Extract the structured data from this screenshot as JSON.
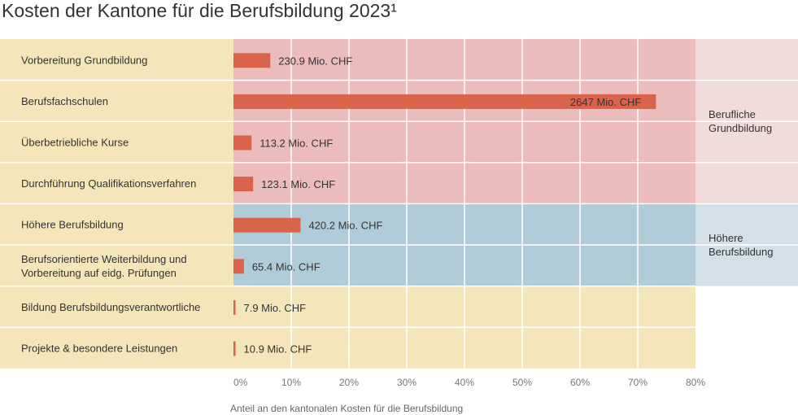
{
  "chart_data": {
    "type": "bar",
    "orientation": "horizontal",
    "title": "Kosten der Kantone für die Berufsbildung 2023¹",
    "xlabel": "Anteil an den kantonalen Kosten für die Berufsbildung",
    "xlim": [
      0,
      80
    ],
    "x_ticks": [
      "0%",
      "10%",
      "20%",
      "30%",
      "40%",
      "50%",
      "60%",
      "70%",
      "80%"
    ],
    "grid": true,
    "categories": [
      [
        "Vorbereitung Grundbildung"
      ],
      [
        "Berufsfachschulen"
      ],
      [
        "Überbetriebliche Kurse"
      ],
      [
        "Durchführung Qualifikationsverfahren"
      ],
      [
        "Höhere Berufsbildung"
      ],
      [
        "Berufsorientierte Weiterbildung und",
        "Vorbereitung auf eidg. Prüfungen"
      ],
      [
        "Bildung Berufsbildungsverantwortliche"
      ],
      [
        "Projekte & besondere Leistungen"
      ]
    ],
    "values_mio_chf": [
      230.9,
      2647,
      113.2,
      123.1,
      420.2,
      65.4,
      7.9,
      10.9
    ],
    "data_labels": [
      "230.9 Mio. CHF",
      "2647 Mio. CHF",
      "113.2 Mio. CHF",
      "123.1  Mio. CHF",
      "420.2 Mio. CHF",
      "65.4 Mio. CHF",
      "7.9 Mio. CHF",
      "10.9  Mio. CHF"
    ],
    "groups": [
      {
        "label": [
          "Berufliche",
          "Grundbildung"
        ],
        "rows": [
          0,
          1,
          2,
          3
        ],
        "color": "#ecbcbc",
        "label_bg": "#f1dcdc"
      },
      {
        "label": [
          "Höhere",
          "Berufsbildung"
        ],
        "rows": [
          4,
          5
        ],
        "color": "#b1ccd8",
        "label_bg": "#d4e0e8"
      },
      {
        "label": [],
        "rows": [
          6,
          7
        ],
        "color": "#f4e6b9",
        "label_bg": "#ffffff"
      }
    ],
    "label_column_color": "#f4e6b9",
    "bar_color": "#d9644b"
  }
}
